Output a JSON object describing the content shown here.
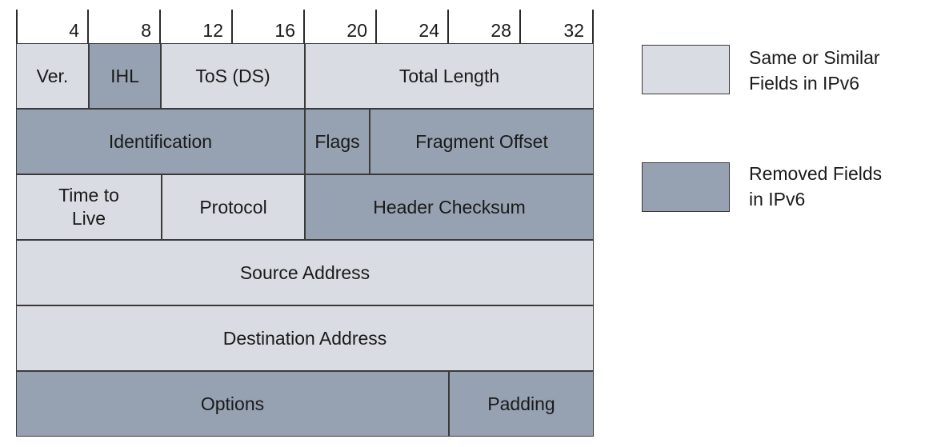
{
  "ruler": {
    "ticks": [
      "4",
      "8",
      "12",
      "16",
      "20",
      "24",
      "28",
      "32"
    ]
  },
  "colors": {
    "same": "#d9dce3",
    "removed": "#96a1b2",
    "border": "#3a3a3a"
  },
  "fields": {
    "version": "Ver.",
    "ihl": "IHL",
    "tos": "ToS (DS)",
    "total_length": "Total Length",
    "identification": "Identification",
    "flags": "Flags",
    "fragment_offset": "Fragment Offset",
    "ttl": "Time to\nLive",
    "protocol": "Protocol",
    "header_checksum": "Header Checksum",
    "source_address": "Source Address",
    "destination_address": "Destination Address",
    "options": "Options",
    "padding": "Padding"
  },
  "legend": {
    "same_label": "Same or Similar\nFields in IPv6",
    "removed_label": "Removed Fields\nin IPv6"
  }
}
